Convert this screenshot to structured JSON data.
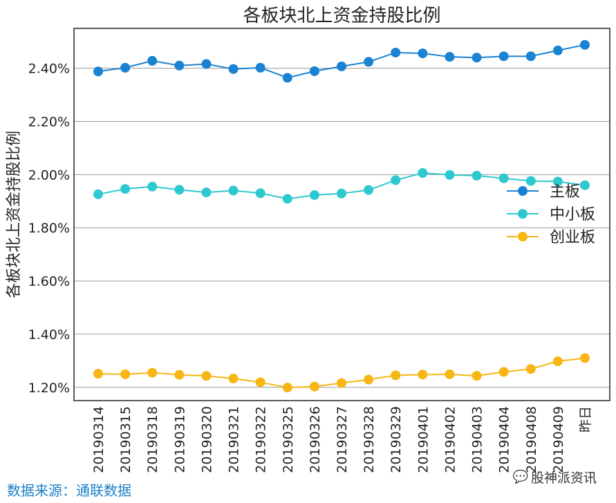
{
  "chart_data": {
    "type": "line",
    "title": "各板块北上资金持股比例",
    "xlabel": "",
    "ylabel": "各板块北上资金持股比例",
    "categories": [
      "20190314",
      "20190315",
      "20190318",
      "20190319",
      "20190320",
      "20190321",
      "20190322",
      "20190325",
      "20190326",
      "20190327",
      "20190328",
      "20190329",
      "20190401",
      "20190402",
      "20190403",
      "20190404",
      "20190408",
      "20190409",
      "昨日"
    ],
    "ylim": [
      1.15,
      2.55
    ],
    "yticks": [
      1.2,
      1.4,
      1.6,
      1.8,
      2.0,
      2.2,
      2.4
    ],
    "ytick_labels": [
      "1.20%",
      "1.40%",
      "1.60%",
      "1.80%",
      "2.00%",
      "2.20%",
      "2.40%"
    ],
    "grid": true,
    "legend_position": "right",
    "series": [
      {
        "name": "主板",
        "color": "#1a82d2",
        "values": [
          2.388,
          2.402,
          2.428,
          2.41,
          2.416,
          2.397,
          2.402,
          2.364,
          2.389,
          2.407,
          2.424,
          2.459,
          2.456,
          2.443,
          2.44,
          2.445,
          2.445,
          2.467,
          2.488
        ]
      },
      {
        "name": "中小板",
        "color": "#2ec8d0",
        "values": [
          1.926,
          1.946,
          1.955,
          1.943,
          1.933,
          1.94,
          1.93,
          1.909,
          1.923,
          1.929,
          1.942,
          1.979,
          2.006,
          1.999,
          1.996,
          1.986,
          1.976,
          1.974,
          1.96
        ]
      },
      {
        "name": "创业板",
        "color": "#f7b614",
        "values": [
          1.251,
          1.249,
          1.255,
          1.247,
          1.243,
          1.233,
          1.219,
          1.199,
          1.203,
          1.216,
          1.229,
          1.245,
          1.248,
          1.249,
          1.243,
          1.258,
          1.269,
          1.298,
          1.31
        ]
      }
    ]
  },
  "footer": {
    "source_text": "数据来源：通联数据",
    "brand_text": "股神派资讯",
    "brand_icon": "wechat-icon"
  }
}
